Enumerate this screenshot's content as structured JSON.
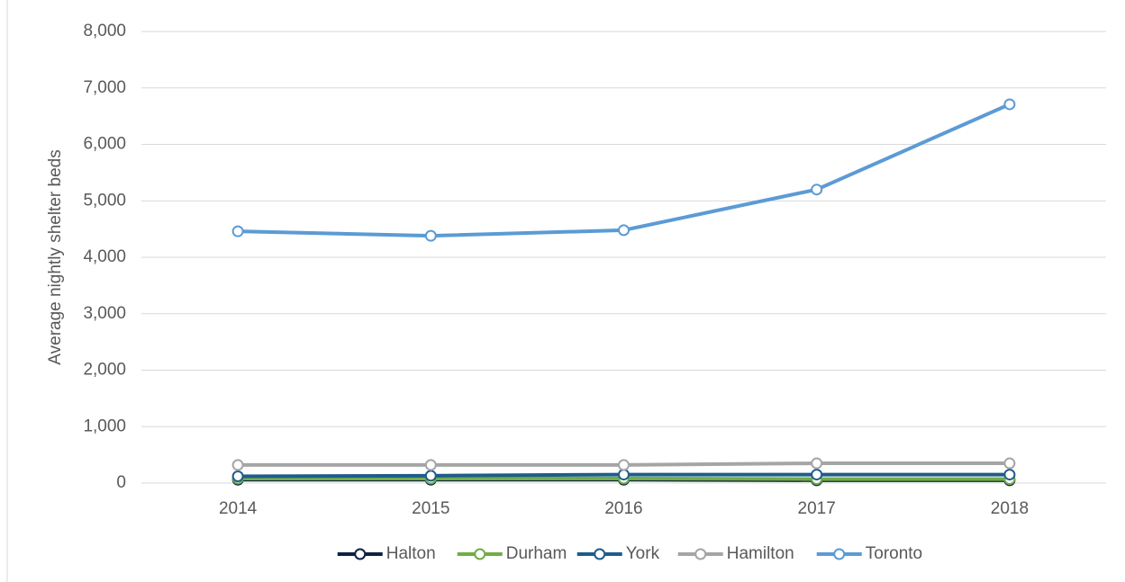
{
  "chart_data": {
    "type": "line",
    "y_label": "Average nightly shelter beds",
    "categories": [
      "2014",
      "2015",
      "2016",
      "2017",
      "2018"
    ],
    "series": [
      {
        "name": "Halton",
        "color": "#0d2240",
        "values": [
          60,
          60,
          60,
          50,
          50
        ]
      },
      {
        "name": "Durham",
        "color": "#70ad47",
        "values": [
          80,
          80,
          80,
          70,
          70
        ]
      },
      {
        "name": "York",
        "color": "#1f5c8b",
        "values": [
          120,
          130,
          150,
          150,
          150
        ]
      },
      {
        "name": "Hamilton",
        "color": "#a5a5a5",
        "values": [
          320,
          320,
          320,
          350,
          350
        ]
      },
      {
        "name": "Toronto",
        "color": "#5b9bd5",
        "values": [
          4460,
          4380,
          4480,
          5200,
          6710
        ]
      }
    ],
    "ylim": [
      0,
      8000
    ],
    "yticks": [
      0,
      {
        "value": 1000,
        "label": "1,000"
      },
      {
        "value": 2000,
        "label": "2,000"
      },
      {
        "value": 3000,
        "label": "3,000"
      },
      {
        "value": 4000,
        "label": "4,000"
      },
      {
        "value": 5000,
        "label": "5,000"
      },
      {
        "value": 6000,
        "label": "6,000"
      },
      {
        "value": 7000,
        "label": "7,000"
      },
      {
        "value": 8000,
        "label": "8,000"
      }
    ],
    "grid": true,
    "legend": "bottom"
  }
}
